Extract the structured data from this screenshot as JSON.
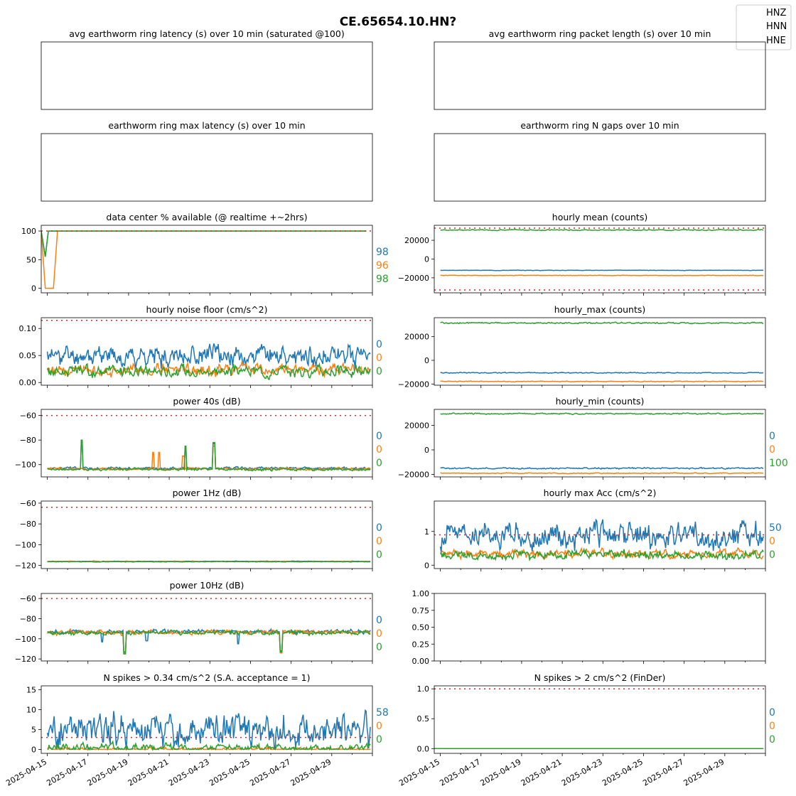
{
  "figure": {
    "title": "CE.65654.10.HN?",
    "legend": [
      "HNZ",
      "HNN",
      "HNE"
    ],
    "colors": {
      "HNZ": "#1f77b4",
      "HNN": "#ff7f0e",
      "HNE": "#2ca02c",
      "threshold": "#d62728"
    },
    "x_tick_labels": [
      "2025-04-15",
      "2025-04-17",
      "2025-04-19",
      "2025-04-21",
      "2025-04-23",
      "2025-04-25",
      "2025-04-27",
      "2025-04-29"
    ]
  },
  "chart_data": [
    {
      "id": "avg_latency",
      "type": "line",
      "title": "avg earthworm ring latency (s)   over 10 min (saturated @100)",
      "series": [],
      "x_ticks_shown": false
    },
    {
      "id": "avg_packet",
      "type": "line",
      "title": "avg earthworm ring packet length (s)   over 10 min",
      "series": [],
      "x_ticks_shown": false
    },
    {
      "id": "max_latency",
      "type": "line",
      "title": "earthworm ring max latency (s)   over 10 min",
      "series": [],
      "x_ticks_shown": false
    },
    {
      "id": "n_gaps",
      "type": "line",
      "title": "earthworm ring N gaps   over 10 min",
      "series": [],
      "x_ticks_shown": false
    },
    {
      "id": "pct_available",
      "type": "line",
      "title": "data center % available (@ realtime +~2hrs)",
      "ylim": [
        -8,
        110
      ],
      "yticks": [
        "0",
        "50",
        "100"
      ],
      "yvals": [
        0,
        50,
        100
      ],
      "threshold": [
        100
      ],
      "annotations": [
        "98",
        "96",
        "98"
      ],
      "series": [
        {
          "channel": "HNZ",
          "kind": "step",
          "points": [
            [
              0,
              100
            ],
            [
              0.2,
              55
            ],
            [
              0.35,
              100
            ],
            [
              16,
              100
            ]
          ]
        },
        {
          "channel": "HNN",
          "kind": "step",
          "points": [
            [
              0,
              100
            ],
            [
              0.2,
              0
            ],
            [
              0.6,
              0
            ],
            [
              0.8,
              100
            ],
            [
              16,
              100
            ]
          ]
        },
        {
          "channel": "HNE",
          "kind": "step",
          "points": [
            [
              0,
              100
            ],
            [
              0.2,
              55
            ],
            [
              0.35,
              100
            ],
            [
              16,
              100
            ]
          ]
        }
      ]
    },
    {
      "id": "hourly_mean",
      "type": "line",
      "title": "hourly mean (counts)",
      "ylim": [
        -36000,
        36000
      ],
      "yticks": [
        "−20000",
        "0",
        "20000"
      ],
      "yvals": [
        -20000,
        0,
        20000
      ],
      "threshold": [
        -33000,
        33000
      ],
      "annotations": [],
      "series": [
        {
          "channel": "HNZ",
          "kind": "noise",
          "base": -12000,
          "amp": 250,
          "seed": 3
        },
        {
          "channel": "HNN",
          "kind": "noise",
          "base": -17500,
          "amp": 300,
          "seed": 5
        },
        {
          "channel": "HNE",
          "kind": "noise",
          "base": 31000,
          "amp": 600,
          "seed": 7
        }
      ]
    },
    {
      "id": "noise_floor",
      "type": "line",
      "title": "hourly noise floor (cm/s^2)",
      "ylim": [
        -0.005,
        0.12
      ],
      "yticks": [
        "0.00",
        "0.05",
        "0.10"
      ],
      "yvals": [
        0,
        0.05,
        0.1
      ],
      "threshold": [
        0.115
      ],
      "annotations": [
        "0",
        "0",
        "0"
      ],
      "series": [
        {
          "channel": "HNZ",
          "kind": "noise",
          "base": 0.05,
          "amp": 0.022,
          "seed": 11
        },
        {
          "channel": "HNN",
          "kind": "noise",
          "base": 0.023,
          "amp": 0.012,
          "seed": 13
        },
        {
          "channel": "HNE",
          "kind": "noise",
          "base": 0.021,
          "amp": 0.012,
          "seed": 17
        }
      ]
    },
    {
      "id": "hourly_max",
      "type": "line",
      "title": "hourly_max (counts)",
      "ylim": [
        -21000,
        36000
      ],
      "yticks": [
        "−20000",
        "0",
        "20000"
      ],
      "yvals": [
        -20000,
        0,
        20000
      ],
      "threshold": [],
      "annotations": [],
      "series": [
        {
          "channel": "HNZ",
          "kind": "noise",
          "base": -10500,
          "amp": 500,
          "seed": 19
        },
        {
          "channel": "HNN",
          "kind": "noise",
          "base": -17800,
          "amp": 400,
          "seed": 23
        },
        {
          "channel": "HNE",
          "kind": "noise",
          "base": 31500,
          "amp": 700,
          "seed": 29
        }
      ]
    },
    {
      "id": "power_40s",
      "type": "line",
      "title": "power 40s (dB)",
      "ylim": [
        -110,
        -55
      ],
      "yticks": [
        "−60",
        "−80",
        "−100"
      ],
      "yvals": [
        -60,
        -80,
        -100
      ],
      "threshold": [
        -60
      ],
      "annotations": [
        "0",
        "0",
        "0"
      ],
      "series": [
        {
          "channel": "HNZ",
          "kind": "noise",
          "base": -103,
          "amp": 1.2,
          "seed": 31,
          "spikes": [
            [
              2.0,
              -80
            ],
            [
              7.1,
              -87
            ],
            [
              8.5,
              -83
            ]
          ]
        },
        {
          "channel": "HNN",
          "kind": "noise",
          "base": -103.5,
          "amp": 1.2,
          "seed": 37,
          "spikes": [
            [
              5.5,
              -90
            ],
            [
              5.8,
              -90
            ],
            [
              7.0,
              -93
            ],
            [
              8.5,
              -85
            ]
          ]
        },
        {
          "channel": "HNE",
          "kind": "noise",
          "base": -104,
          "amp": 1.2,
          "seed": 41,
          "spikes": [
            [
              2.0,
              -80
            ],
            [
              7.1,
              -85
            ],
            [
              8.5,
              -82
            ]
          ]
        }
      ]
    },
    {
      "id": "hourly_min",
      "type": "line",
      "title": "hourly_min (counts)",
      "ylim": [
        -22000,
        33000
      ],
      "yticks": [
        "−20000",
        "0",
        "20000"
      ],
      "yvals": [
        -20000,
        0,
        20000
      ],
      "threshold": [],
      "annotations": [
        "0",
        "0",
        "100"
      ],
      "series": [
        {
          "channel": "HNZ",
          "kind": "noise",
          "base": -15000,
          "amp": 700,
          "seed": 43
        },
        {
          "channel": "HNN",
          "kind": "noise",
          "base": -19000,
          "amp": 400,
          "seed": 47
        },
        {
          "channel": "HNE",
          "kind": "noise",
          "base": 29500,
          "amp": 600,
          "seed": 53
        }
      ]
    },
    {
      "id": "power_1hz",
      "type": "line",
      "title": "power 1Hz (dB)",
      "ylim": [
        -123,
        -58
      ],
      "yticks": [
        "−60",
        "−80",
        "−100",
        "−120"
      ],
      "yvals": [
        -60,
        -80,
        -100,
        -120
      ],
      "threshold": [
        -64
      ],
      "annotations": [
        "0",
        "0",
        "0"
      ],
      "series": [
        {
          "channel": "HNZ",
          "kind": "noise",
          "base": -116,
          "amp": 0.3,
          "seed": 59
        },
        {
          "channel": "HNN",
          "kind": "noise",
          "base": -116.2,
          "amp": 0.3,
          "seed": 61
        },
        {
          "channel": "HNE",
          "kind": "noise",
          "base": -116.4,
          "amp": 0.3,
          "seed": 67
        }
      ]
    },
    {
      "id": "hourly_max_acc",
      "type": "line",
      "title": "hourly max Acc (cm/s^2)",
      "ylim": [
        -0.1,
        1.9
      ],
      "yticks": [
        "0",
        "1"
      ],
      "yvals": [
        0,
        1
      ],
      "threshold": [
        0.9
      ],
      "annotations": [
        "50",
        "0",
        "0"
      ],
      "series": [
        {
          "channel": "HNZ",
          "kind": "noise",
          "base": 0.9,
          "amp": 0.45,
          "seed": 71
        },
        {
          "channel": "HNN",
          "kind": "noise",
          "base": 0.33,
          "amp": 0.15,
          "seed": 73
        },
        {
          "channel": "HNE",
          "kind": "noise",
          "base": 0.3,
          "amp": 0.15,
          "seed": 79
        }
      ]
    },
    {
      "id": "power_10hz",
      "type": "line",
      "title": "power 10Hz (dB)",
      "ylim": [
        -122,
        -55
      ],
      "yticks": [
        "−60",
        "−80",
        "−100",
        "−120"
      ],
      "yvals": [
        -60,
        -80,
        -100,
        -120
      ],
      "threshold": [
        -60
      ],
      "annotations": [
        "0",
        "0",
        "0"
      ],
      "series": [
        {
          "channel": "HNZ",
          "kind": "noise",
          "base": -93,
          "amp": 2.5,
          "seed": 83,
          "spikes": [
            [
              3.0,
              -103
            ],
            [
              4.1,
              -113
            ],
            [
              5.2,
              -102
            ],
            [
              9.7,
              -105
            ],
            [
              11.8,
              -112
            ]
          ]
        },
        {
          "channel": "HNN",
          "kind": "noise",
          "base": -93.5,
          "amp": 2.5,
          "seed": 89,
          "spikes": [
            [
              4.1,
              -114
            ],
            [
              11.8,
              -114
            ]
          ]
        },
        {
          "channel": "HNE",
          "kind": "noise",
          "base": -94,
          "amp": 2.5,
          "seed": 97,
          "spikes": [
            [
              4.1,
              -115
            ],
            [
              11.8,
              -113
            ]
          ]
        }
      ]
    },
    {
      "id": "empty_axes",
      "type": "line",
      "title": "",
      "ylim": [
        0,
        1
      ],
      "yticks": [
        "0.00",
        "0.25",
        "0.50",
        "0.75",
        "1.00"
      ],
      "yvals": [
        0,
        0.25,
        0.5,
        0.75,
        1.0
      ],
      "series": [],
      "threshold": [],
      "annotations": []
    },
    {
      "id": "n_spikes_034",
      "type": "line",
      "title": "N spikes > 0.34 cm/s^2 (S.A. acceptance = 1)",
      "ylim": [
        -1,
        16
      ],
      "yticks": [
        "0",
        "5",
        "10",
        "15"
      ],
      "yvals": [
        0,
        5,
        10,
        15
      ],
      "threshold": [
        3
      ],
      "annotations": [
        "58",
        "0",
        "0"
      ],
      "series": [
        {
          "channel": "HNZ",
          "kind": "noise",
          "base": 5,
          "amp": 5,
          "seed": 101,
          "min": 0
        },
        {
          "channel": "HNN",
          "kind": "noise",
          "base": 0,
          "amp": 0.6,
          "seed": 103,
          "min": 0
        },
        {
          "channel": "HNE",
          "kind": "noise",
          "base": 0.3,
          "amp": 1.2,
          "seed": 107,
          "min": 0
        }
      ]
    },
    {
      "id": "n_spikes_2",
      "type": "line",
      "title": "N spikes > 2 cm/s^2 (FinDer)",
      "ylim": [
        -0.08,
        1.05
      ],
      "yticks": [
        "0.0",
        "0.5",
        "1.0"
      ],
      "yvals": [
        0,
        0.5,
        1.0
      ],
      "threshold": [
        1.0
      ],
      "annotations": [
        "0",
        "0",
        "0"
      ],
      "series": [
        {
          "channel": "HNZ",
          "kind": "flat",
          "base": 0
        },
        {
          "channel": "HNN",
          "kind": "flat",
          "base": 0
        },
        {
          "channel": "HNE",
          "kind": "flat",
          "base": 0
        }
      ]
    }
  ]
}
